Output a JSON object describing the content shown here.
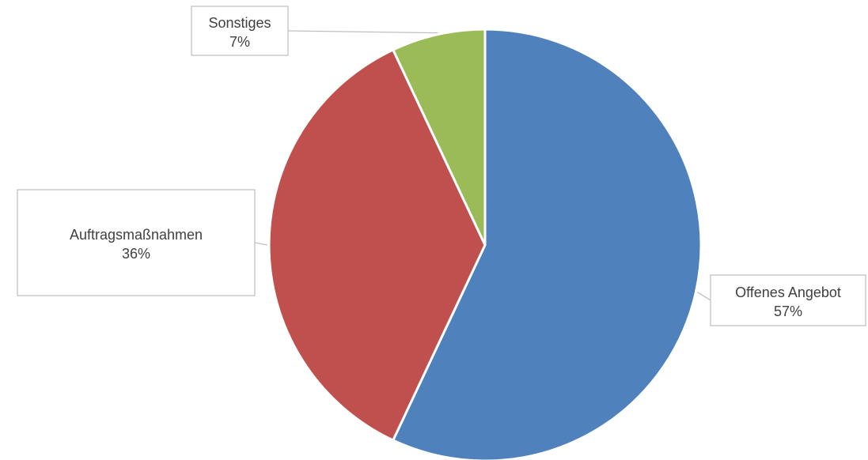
{
  "chart_data": {
    "type": "pie",
    "slices": [
      {
        "label": "Offenes Angebot",
        "value": 57,
        "value_label": "57%",
        "color": "#4F81BD"
      },
      {
        "label": "Auftragsmaßnahmen",
        "value": 36,
        "value_label": "36%",
        "color": "#C0504D"
      },
      {
        "label": "Sonstiges",
        "value": 7,
        "value_label": "7%",
        "color": "#9BBB59"
      }
    ]
  }
}
